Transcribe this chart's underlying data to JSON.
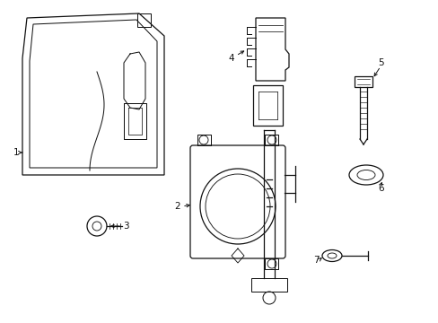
{
  "bg_color": "#ffffff",
  "line_color": "#111111",
  "fig_width": 4.89,
  "fig_height": 3.6,
  "dpi": 100
}
